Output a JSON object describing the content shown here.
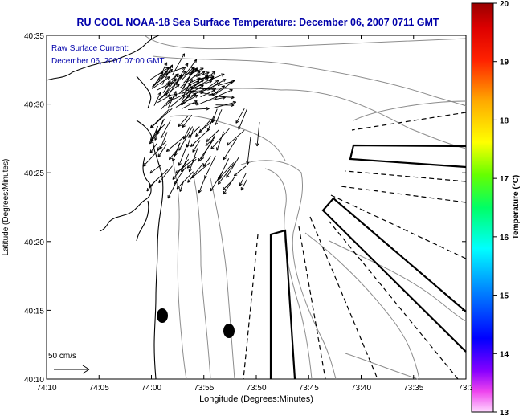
{
  "title": "RU COOL  NOAA-18  Sea Surface Temperature:  December 06, 2007 0711 GMT",
  "current_label": {
    "line1": "Raw Surface Current:",
    "line2": "December 06, 2007 07:00 GMT"
  },
  "scale_label": "50 cm/s",
  "axes": {
    "xlabel": "Longitude (Degrees:Minutes)",
    "ylabel": "Latitude (Degrees:Minutes)",
    "x_ticks": [
      "74:10",
      "74:05",
      "74:00",
      "73:55",
      "73:50",
      "73:45",
      "73:40",
      "73:35",
      "73:3"
    ],
    "y_ticks": [
      "40:35",
      "40:30",
      "40:25",
      "40:20",
      "40:15",
      "40:10"
    ]
  },
  "colorbar": {
    "label": "Temperature (°C)",
    "min": 13,
    "max": 20,
    "ticks": [
      "20",
      "19",
      "18",
      "17",
      "16",
      "15",
      "14",
      "13"
    ]
  },
  "colors": {
    "title": "#0000aa",
    "annotation": "#0000aa",
    "coast": "#000000",
    "bathymetry": "#8c8c8c"
  }
}
